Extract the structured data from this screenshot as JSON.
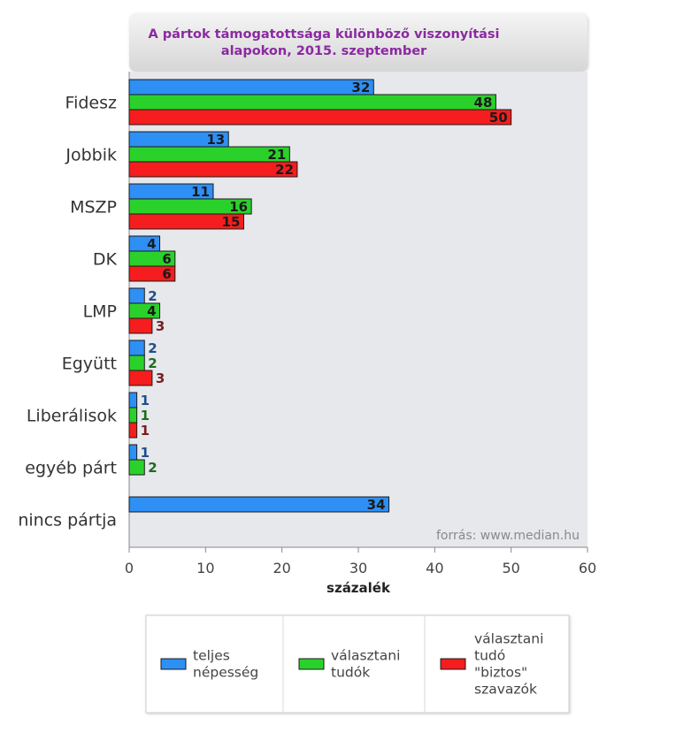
{
  "chart_data": {
    "type": "bar",
    "orientation": "horizontal",
    "title_lines": [
      "A pártok támogatottsága különböző viszonyítási",
      "alapokon, 2015. szeptember"
    ],
    "categories": [
      "Fidesz",
      "Jobbik",
      "MSZP",
      "DK",
      "LMP",
      "Együtt",
      "Liberálisok",
      "egyéb párt",
      "nincs pártja"
    ],
    "series": [
      {
        "name_lines": [
          "teljes",
          "népesség"
        ],
        "color": "#2e8ff5",
        "text_color": "#1f4f8a",
        "values": [
          32,
          13,
          11,
          4,
          2,
          2,
          1,
          1,
          34
        ]
      },
      {
        "name_lines": [
          "választani",
          "tudók"
        ],
        "color": "#2bd12b",
        "text_color": "#1f6b1f",
        "values": [
          48,
          21,
          16,
          6,
          4,
          2,
          1,
          2,
          null
        ]
      },
      {
        "name_lines": [
          "választani",
          "tudó",
          "\"biztos\"",
          "szavazók"
        ],
        "color": "#f51d1d",
        "text_color": "#7a1f1f",
        "values": [
          50,
          22,
          15,
          6,
          3,
          3,
          1,
          null,
          null
        ]
      }
    ],
    "xlabel": "százalék",
    "xlim": [
      0,
      60
    ],
    "xticks": [
      "0",
      "10",
      "20",
      "30",
      "40",
      "50",
      "60"
    ],
    "source": "forrás: www.median.hu",
    "grid": false,
    "legend_position": "bottom"
  }
}
